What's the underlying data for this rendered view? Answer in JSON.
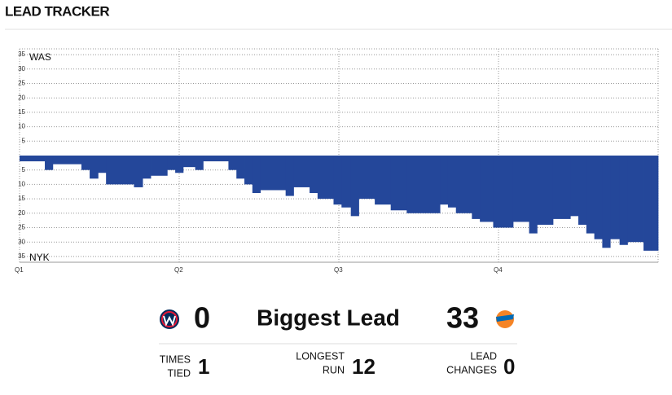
{
  "header": {
    "title": "LEAD TRACKER"
  },
  "chart_data": {
    "type": "step-area",
    "color": "#24479a",
    "top_label": "WAS",
    "bottom_label": "NYK",
    "x": [
      0,
      1.9,
      2.5,
      4.65,
      5.27,
      5.9,
      6.5,
      8.6,
      9.25,
      9.86,
      11.1,
      11.7,
      12.3,
      13.2,
      13.8,
      15.7,
      16.3,
      16.9,
      17.5,
      18.1,
      20.0,
      20.6,
      21.8,
      22.4,
      23.6,
      24.2,
      24.9,
      25.5,
      26.7,
      27.9,
      29.1,
      31.6,
      32.2,
      32.8,
      34.0,
      34.6,
      35.6,
      37.1,
      38.3,
      38.9,
      40.1,
      41.4,
      42.0,
      42.6,
      43.2,
      43.8,
      44.4,
      45.1,
      45.7,
      46.9,
      47.5
    ],
    "values": [
      -2,
      -5,
      -3,
      -5,
      -8,
      -6,
      -10,
      -11,
      -8,
      -7,
      -5,
      -6,
      -4,
      -5,
      -2,
      -5,
      -8,
      -10,
      -13,
      -12,
      -14,
      -11,
      -13,
      -15,
      -17,
      -18,
      -21,
      -15,
      -17,
      -19,
      -20,
      -17,
      -18,
      -20,
      -22,
      -23,
      -25,
      -23,
      -27,
      -24,
      -22,
      -21,
      -24,
      -27,
      -29,
      -32,
      -29,
      -31,
      -30,
      -33,
      -33
    ],
    "xlim": [
      0,
      48
    ],
    "xticks": [
      {
        "value": 0,
        "label": "Q1"
      },
      {
        "value": 12,
        "label": "Q2"
      },
      {
        "value": 24,
        "label": "Q3"
      },
      {
        "value": 36,
        "label": "Q4"
      }
    ],
    "ylim": [
      -37,
      37
    ],
    "yticks": [
      35,
      30,
      25,
      20,
      15,
      10,
      5,
      {
        "value": -5,
        "label": "5"
      },
      {
        "value": -10,
        "label": "10"
      },
      {
        "value": -15,
        "label": "15"
      },
      {
        "value": -20,
        "label": "20"
      },
      {
        "value": -25,
        "label": "25"
      },
      {
        "value": -30,
        "label": "30"
      },
      {
        "value": -35,
        "label": "35"
      }
    ],
    "grid": true
  },
  "stats": {
    "was_biggest": "0",
    "biggest_label": "Biggest Lead",
    "nyk_biggest": "33",
    "times_tied": {
      "label": [
        "TIMES",
        "TIED"
      ],
      "value": "1"
    },
    "longest_run": {
      "label": [
        "LONGEST",
        "RUN"
      ],
      "value": "12"
    },
    "lead_changes": {
      "label": [
        "LEAD",
        "CHANGES"
      ],
      "value": "0"
    }
  }
}
